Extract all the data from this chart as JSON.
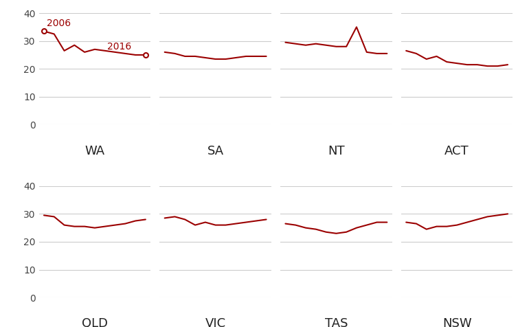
{
  "line_color": "#9b0000",
  "background_color": "#ffffff",
  "label_color": "#222222",
  "grid_color": "#cccccc",
  "yticks": [
    0,
    10,
    20,
    30,
    40
  ],
  "panels": [
    {
      "label": "WA",
      "row": 0,
      "col": 0,
      "values": [
        33.5,
        32.5,
        26.5,
        28.5,
        26.0,
        27.0,
        26.5,
        26.0,
        25.5,
        25.0,
        25.0
      ],
      "show_2006": true,
      "show_2016": true,
      "first_open": true,
      "last_open": true
    },
    {
      "label": "SA",
      "row": 0,
      "col": 1,
      "values": [
        26.0,
        25.5,
        24.5,
        24.5,
        24.0,
        23.5,
        23.5,
        24.0,
        24.5,
        24.5,
        24.5
      ],
      "show_2006": false,
      "show_2016": false,
      "first_open": false,
      "last_open": false
    },
    {
      "label": "NT",
      "row": 0,
      "col": 2,
      "values": [
        29.5,
        29.0,
        28.5,
        29.0,
        28.5,
        28.0,
        28.0,
        35.0,
        26.0,
        25.5,
        25.5
      ],
      "show_2006": false,
      "show_2016": false,
      "first_open": false,
      "last_open": false
    },
    {
      "label": "ACT",
      "row": 0,
      "col": 3,
      "values": [
        26.5,
        25.5,
        23.5,
        24.5,
        22.5,
        22.0,
        21.5,
        21.5,
        21.0,
        21.0,
        21.5
      ],
      "show_2006": false,
      "show_2016": false,
      "first_open": false,
      "last_open": false
    },
    {
      "label": "QLD",
      "row": 1,
      "col": 0,
      "values": [
        29.5,
        29.0,
        26.0,
        25.5,
        25.5,
        25.0,
        25.5,
        26.0,
        26.5,
        27.5,
        28.0
      ],
      "show_2006": false,
      "show_2016": false,
      "first_open": false,
      "last_open": false
    },
    {
      "label": "VIC",
      "row": 1,
      "col": 1,
      "values": [
        28.5,
        29.0,
        28.0,
        26.0,
        27.0,
        26.0,
        26.0,
        26.5,
        27.0,
        27.5,
        28.0
      ],
      "show_2006": false,
      "show_2016": false,
      "first_open": false,
      "last_open": false
    },
    {
      "label": "TAS",
      "row": 1,
      "col": 2,
      "values": [
        26.5,
        26.0,
        25.0,
        24.5,
        23.5,
        23.0,
        23.5,
        25.0,
        26.0,
        27.0,
        27.0
      ],
      "show_2006": false,
      "show_2016": false,
      "first_open": false,
      "last_open": false
    },
    {
      "label": "NSW",
      "row": 1,
      "col": 3,
      "values": [
        27.0,
        26.5,
        24.5,
        25.5,
        25.5,
        26.0,
        27.0,
        28.0,
        29.0,
        29.5,
        30.0
      ],
      "show_2006": false,
      "show_2016": false,
      "first_open": false,
      "last_open": false
    }
  ]
}
